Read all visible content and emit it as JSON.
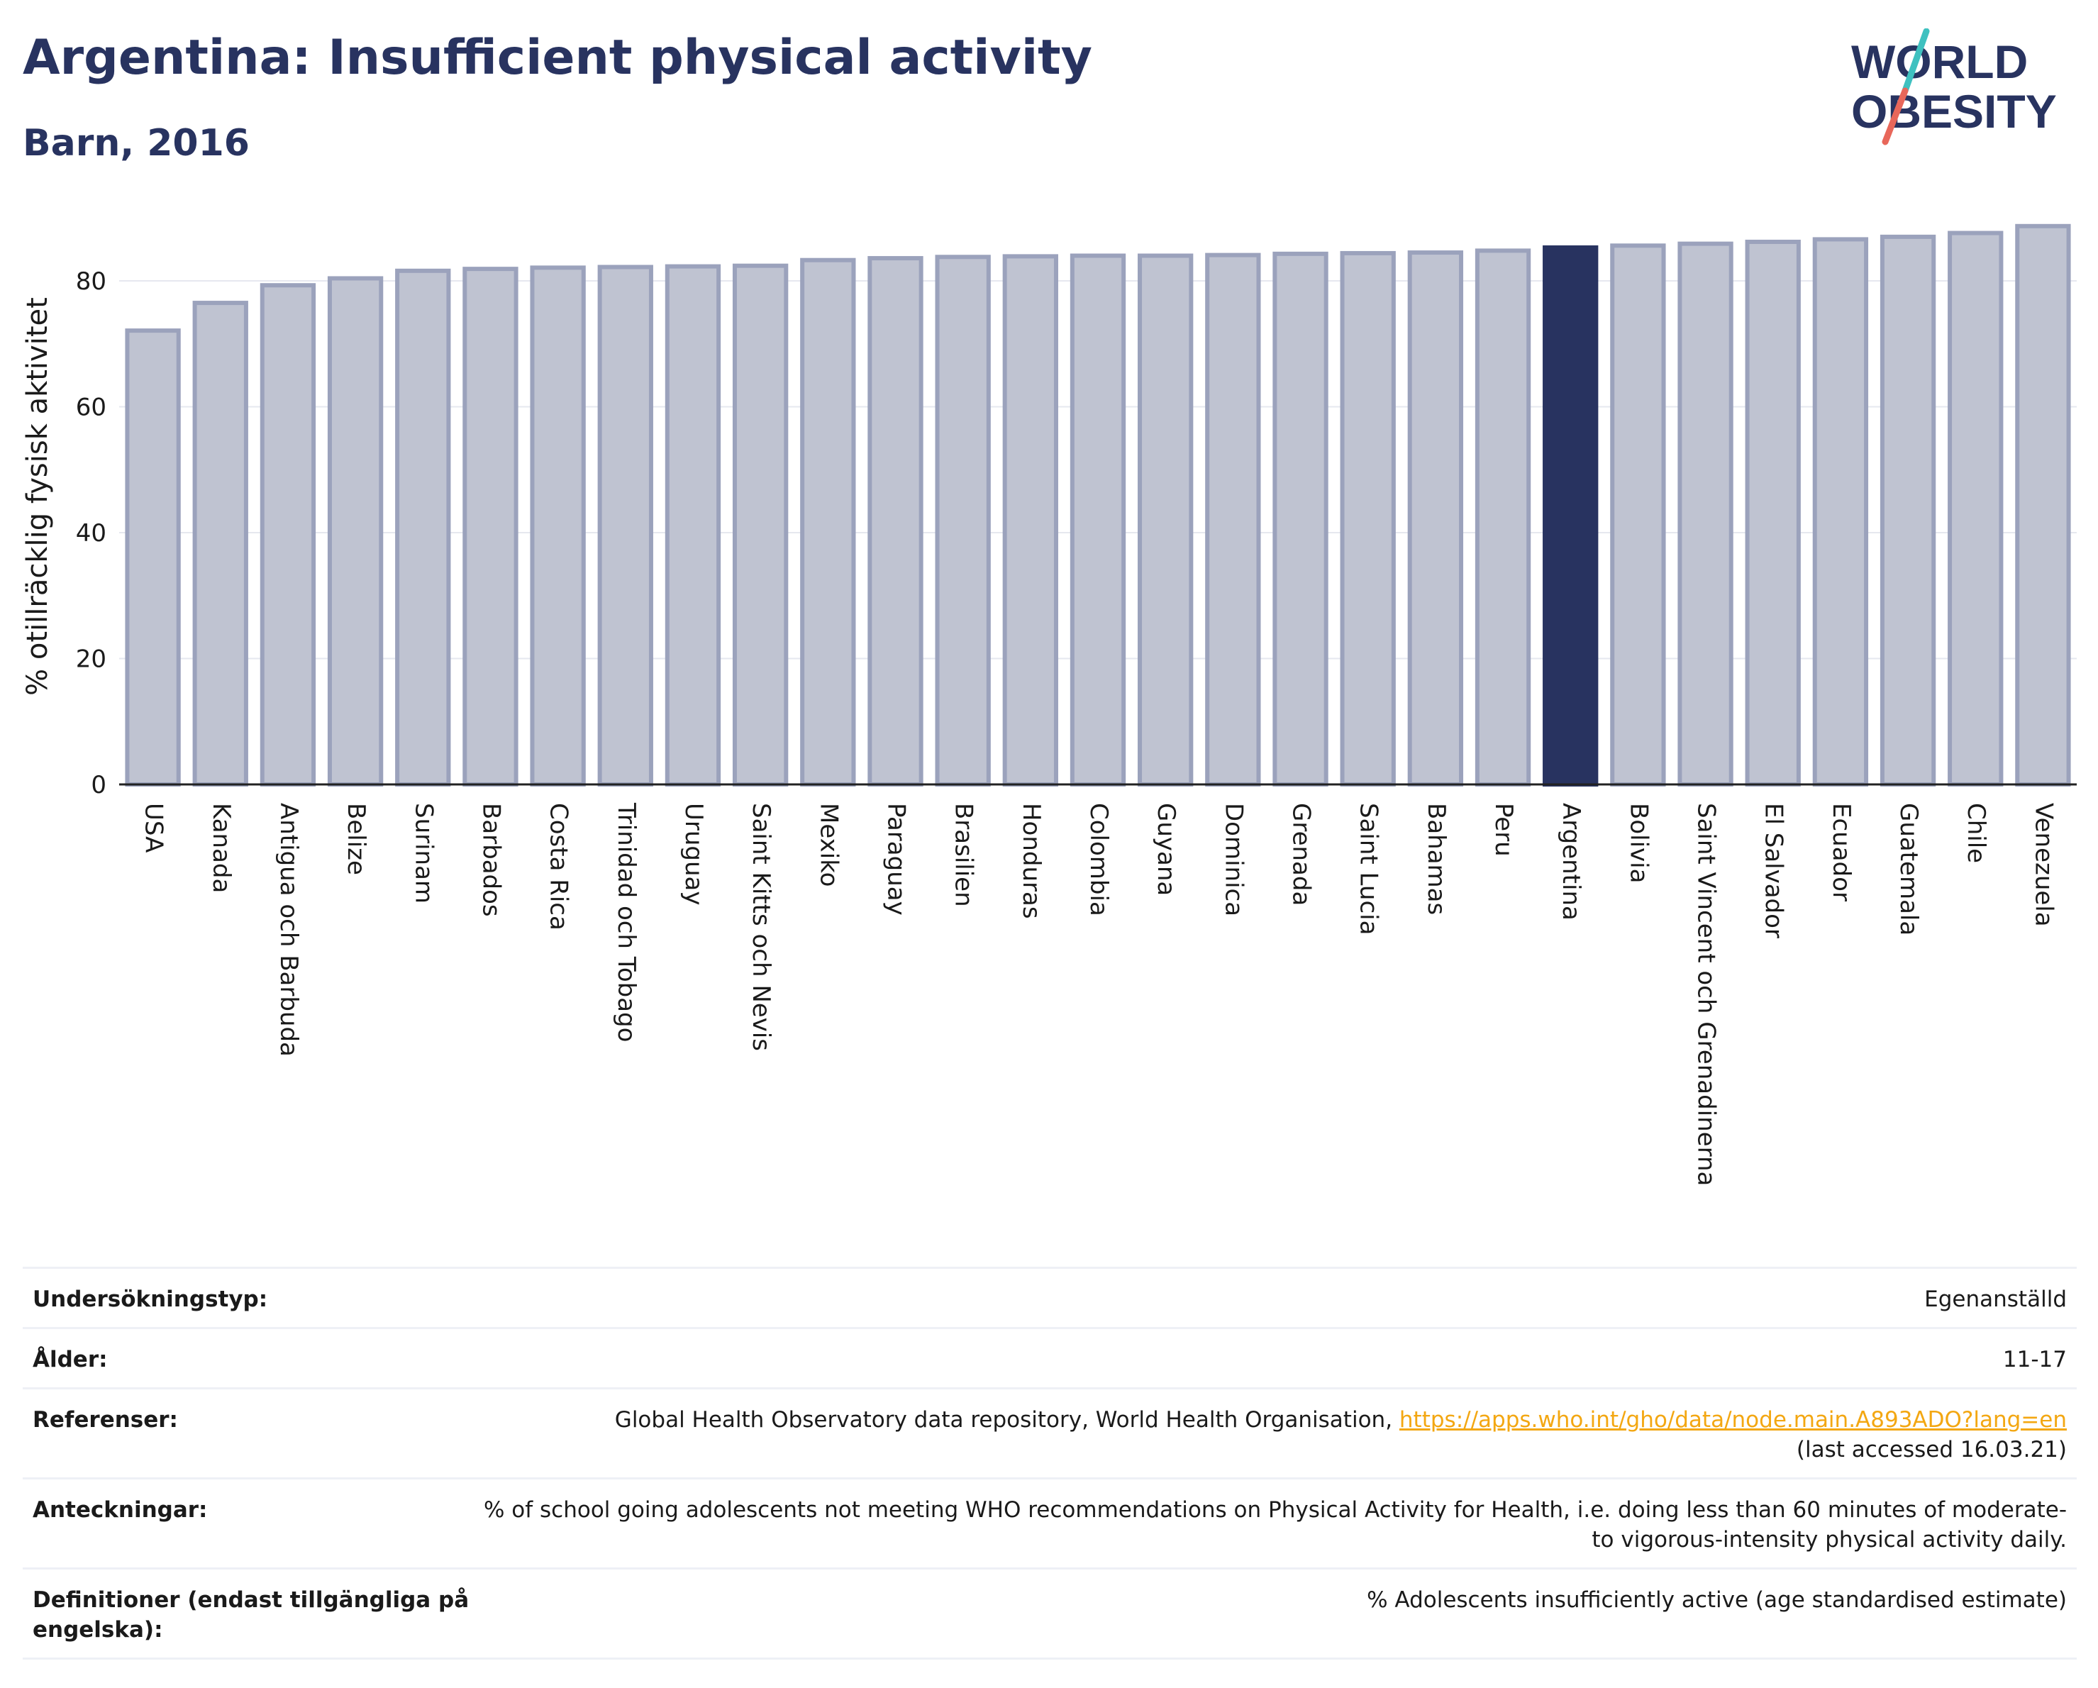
{
  "header": {
    "title": "Argentina: Insufficient physical activity",
    "subtitle": "Barn, 2016",
    "logo_text_1": "WORLD",
    "logo_text_2": "OBESITY"
  },
  "colors": {
    "bar_default": "#bfc3d1",
    "bar_default_edge": "#9ba2bc",
    "bar_highlight": "#283360",
    "title": "#283360",
    "link": "#f3a712",
    "logo_slash_top": "#3fc1c0",
    "logo_slash_bottom": "#e8675a"
  },
  "chart_data": {
    "type": "bar",
    "title": "Argentina: Insufficient physical activity",
    "subtitle": "Barn, 2016",
    "xlabel": "",
    "ylabel": "% otillräcklig fysisk aktivitet",
    "ylim": [
      0,
      90
    ],
    "yticks": [
      0,
      20,
      40,
      60,
      80
    ],
    "grid": true,
    "highlight": "Argentina",
    "categories": [
      "USA",
      "Kanada",
      "Antigua och Barbuda",
      "Belize",
      "Surinam",
      "Barbados",
      "Costa Rica",
      "Trinidad och Tobago",
      "Uruguay",
      "Saint Kitts och Nevis",
      "Mexiko",
      "Paraguay",
      "Brasilien",
      "Honduras",
      "Colombia",
      "Guyana",
      "Dominica",
      "Grenada",
      "Saint Lucia",
      "Bahamas",
      "Peru",
      "Argentina",
      "Bolivia",
      "Saint Vincent och Grenadinerna",
      "El Salvador",
      "Ecuador",
      "Guatemala",
      "Chile",
      "Venezuela"
    ],
    "values": [
      72.1,
      76.5,
      79.3,
      80.4,
      81.6,
      81.9,
      82.1,
      82.2,
      82.3,
      82.4,
      83.3,
      83.6,
      83.8,
      83.9,
      84.0,
      84.0,
      84.1,
      84.3,
      84.4,
      84.5,
      84.8,
      85.3,
      85.6,
      85.9,
      86.2,
      86.6,
      87.0,
      87.6,
      88.7
    ]
  },
  "meta": [
    {
      "key": "Undersökningstyp:",
      "value": "Egenanställd"
    },
    {
      "key": "Ålder:",
      "value": "11-17"
    },
    {
      "key": "Referenser:",
      "value": "Global Health Observatory data repository, World Health Organisation, ",
      "link": "https://apps.who.int/gho/data/node.main.A893ADO?lang=en",
      "value2": "(last accessed 16.03.21)"
    },
    {
      "key": "Anteckningar:",
      "value": "% of school going adolescents not meeting WHO recommendations on Physical Activity for Health, i.e. doing less than 60 minutes of moderate- to vigorous-intensity physical activity daily."
    },
    {
      "key": "Definitioner (endast tillgängliga på engelska):",
      "value": "% Adolescents insufficiently active (age standardised estimate)"
    }
  ]
}
